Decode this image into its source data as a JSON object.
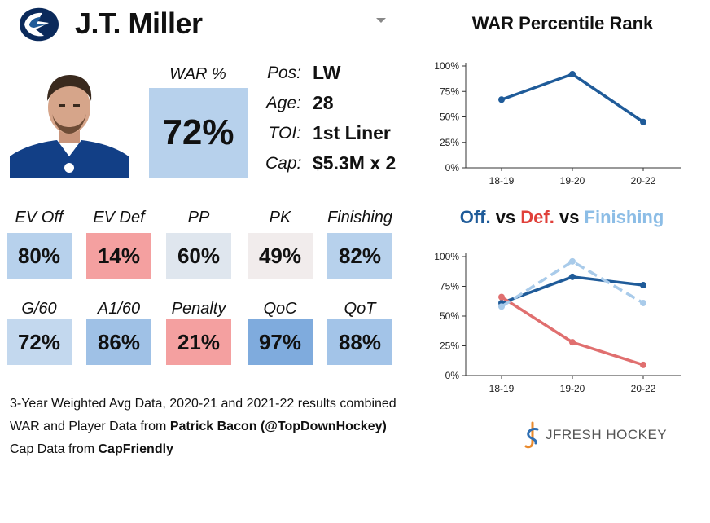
{
  "player": {
    "name": "J.T. Miller"
  },
  "war": {
    "label": "WAR %",
    "value": "72%"
  },
  "info": [
    {
      "label": "Pos:",
      "value": "LW"
    },
    {
      "label": "Age:",
      "value": "28"
    },
    {
      "label": "TOI:",
      "value": "1st Liner"
    },
    {
      "label": "Cap:",
      "value": "$5.3M x 2"
    }
  ],
  "stats": [
    {
      "label": "EV Off",
      "value": "80%",
      "color": "#b7d1ec"
    },
    {
      "label": "EV Def",
      "value": "14%",
      "color": "#f4a0a0"
    },
    {
      "label": "PP",
      "value": "60%",
      "color": "#dfe6ee"
    },
    {
      "label": "PK",
      "value": "49%",
      "color": "#f1ecec"
    },
    {
      "label": "Finishing",
      "value": "82%",
      "color": "#b7d1ec"
    },
    {
      "label": "G/60",
      "value": "72%",
      "color": "#c3d8ee"
    },
    {
      "label": "A1/60",
      "value": "86%",
      "color": "#9fc1e6"
    },
    {
      "label": "Penalty",
      "value": "21%",
      "color": "#f4a0a0"
    },
    {
      "label": "QoC",
      "value": "97%",
      "color": "#7fabdd"
    },
    {
      "label": "QoT",
      "value": "88%",
      "color": "#a3c4e8"
    }
  ],
  "footer": {
    "line1": "3-Year Weighted Avg Data, 2020-21 and 2021-22 results combined",
    "line2_prefix": "WAR and Player Data from ",
    "line2_bold": "Patrick Bacon (@TopDownHockey)",
    "line3_prefix": "Cap Data from ",
    "line3_bold": "CapFriendly"
  },
  "brand": {
    "text": "JFRESH HOCKEY"
  },
  "chart_data": [
    {
      "type": "line",
      "title": "WAR Percentile Rank",
      "categories": [
        "18-19",
        "19-20",
        "20-22"
      ],
      "series": [
        {
          "name": "WAR",
          "values": [
            67,
            92,
            45
          ],
          "color": "#1f5b99"
        }
      ],
      "yticks": [
        "0%",
        "25%",
        "50%",
        "75%",
        "100%"
      ],
      "ylim": [
        0,
        100
      ]
    },
    {
      "type": "line",
      "title_parts": [
        {
          "text": "Off.",
          "color": "#1f5b99"
        },
        {
          "text": " vs ",
          "color": "#111111"
        },
        {
          "text": "Def.",
          "color": "#e0403a"
        },
        {
          "text": " vs ",
          "color": "#111111"
        },
        {
          "text": "Finishing",
          "color": "#8cbde6"
        }
      ],
      "categories": [
        "18-19",
        "19-20",
        "20-22"
      ],
      "series": [
        {
          "name": "Off.",
          "values": [
            61,
            83,
            76
          ],
          "color": "#1f5b99",
          "dash": false
        },
        {
          "name": "Def.",
          "values": [
            66,
            28,
            9
          ],
          "color": "#e06f6f",
          "dash": false
        },
        {
          "name": "Finishing",
          "values": [
            58,
            96,
            61
          ],
          "color": "#a9cbea",
          "dash": true
        }
      ],
      "yticks": [
        "0%",
        "25%",
        "50%",
        "75%",
        "100%"
      ],
      "ylim": [
        0,
        100
      ]
    }
  ]
}
